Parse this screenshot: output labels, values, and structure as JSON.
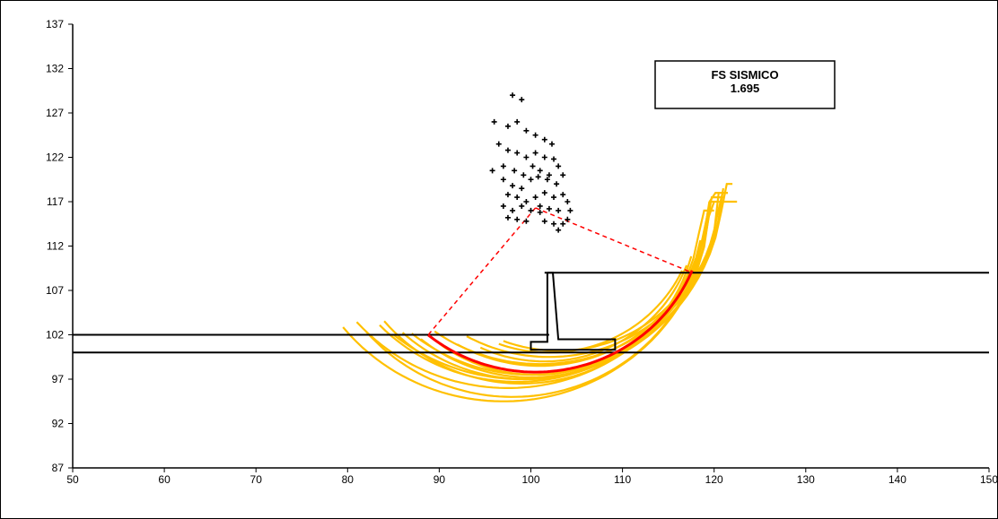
{
  "chart_data": {
    "type": "scatter",
    "title": "",
    "xlabel": "",
    "ylabel": "",
    "xlim": [
      50,
      150
    ],
    "ylim": [
      87,
      137
    ],
    "x_ticks": [
      50,
      60,
      70,
      80,
      90,
      100,
      110,
      120,
      130,
      140,
      150
    ],
    "y_ticks": [
      87,
      92,
      97,
      102,
      107,
      112,
      117,
      122,
      127,
      132,
      137
    ],
    "grid": false,
    "annotation": {
      "line1": "FS SISMICO",
      "line2": "1.695"
    },
    "colors": {
      "critical": "#ff0000",
      "trial": "#ffc000",
      "profile": "#000000",
      "centers": "#000000",
      "radius": "#ff0000"
    },
    "profile": {
      "lower_ground": [
        [
          50,
          100
        ],
        [
          150,
          100
        ]
      ],
      "upper_ground": [
        [
          50,
          102
        ],
        [
          102,
          102
        ]
      ],
      "backfill": [
        [
          101.5,
          109
        ],
        [
          150,
          109
        ]
      ],
      "wall": [
        [
          101.8,
          109
        ],
        [
          102.4,
          109
        ],
        [
          103,
          101.5
        ],
        [
          109.2,
          101.5
        ],
        [
          109.2,
          100.3
        ],
        [
          100,
          100.3
        ],
        [
          100,
          101.2
        ],
        [
          101.8,
          101.2
        ],
        [
          101.8,
          109
        ]
      ]
    },
    "centers": [
      [
        98,
        129
      ],
      [
        99,
        128.5
      ],
      [
        96,
        126
      ],
      [
        97.5,
        125.5
      ],
      [
        98.5,
        126
      ],
      [
        99.5,
        125
      ],
      [
        100.5,
        124.5
      ],
      [
        101.5,
        124
      ],
      [
        102.3,
        123.5
      ],
      [
        96.5,
        123.5
      ],
      [
        97.5,
        122.8
      ],
      [
        98.5,
        122.5
      ],
      [
        99.5,
        122
      ],
      [
        100.5,
        122.5
      ],
      [
        101.5,
        122
      ],
      [
        102.5,
        121.8
      ],
      [
        97,
        121
      ],
      [
        98.2,
        120.5
      ],
      [
        99.2,
        120
      ],
      [
        100.2,
        121
      ],
      [
        101,
        120.5
      ],
      [
        102,
        120
      ],
      [
        103,
        121
      ],
      [
        103.5,
        120
      ],
      [
        95.8,
        120.5
      ],
      [
        97,
        119.5
      ],
      [
        98,
        118.8
      ],
      [
        99,
        118.5
      ],
      [
        100,
        119.5
      ],
      [
        100.8,
        119.8
      ],
      [
        101.8,
        119.5
      ],
      [
        102.8,
        119
      ],
      [
        97.5,
        117.8
      ],
      [
        98.5,
        117.5
      ],
      [
        99.5,
        117
      ],
      [
        100.5,
        117.5
      ],
      [
        101.5,
        118
      ],
      [
        102.5,
        117.5
      ],
      [
        103.5,
        117.8
      ],
      [
        97,
        116.5
      ],
      [
        98,
        116
      ],
      [
        99,
        116.5
      ],
      [
        100,
        116
      ],
      [
        101,
        115.8
      ],
      [
        102,
        116.2
      ],
      [
        103,
        116
      ],
      [
        104,
        117
      ],
      [
        104.3,
        116
      ],
      [
        97.5,
        115.2
      ],
      [
        98.5,
        115
      ],
      [
        99.5,
        114.8
      ],
      [
        101.5,
        114.8
      ],
      [
        102.5,
        114.5
      ],
      [
        103.5,
        114.5
      ],
      [
        104,
        115
      ],
      [
        101,
        116.5
      ],
      [
        103,
        113.8
      ]
    ],
    "critical_circle": {
      "center": [
        100.5,
        116.3
      ],
      "radius": 18.5,
      "entry": [
        88.8,
        102
      ],
      "exit": [
        117.6,
        109
      ]
    },
    "trial_circles": [
      {
        "center": [
          97,
          117
        ],
        "radius": 22.5,
        "x1": 79.5,
        "x2": 122.5
      },
      {
        "center": [
          98,
          116
        ],
        "radius": 21.0,
        "x1": 82.0,
        "x2": 120.0
      },
      {
        "center": [
          99,
          116
        ],
        "radius": 19.5,
        "x1": 84.0,
        "x2": 119.5
      },
      {
        "center": [
          99.5,
          117
        ],
        "radius": 20.0,
        "x1": 86.0,
        "x2": 120.0
      },
      {
        "center": [
          100,
          116
        ],
        "radius": 18.8,
        "x1": 88.0,
        "x2": 118.5
      },
      {
        "center": [
          100.5,
          115
        ],
        "radius": 17.5,
        "x1": 90.0,
        "x2": 117.5
      },
      {
        "center": [
          101,
          116.5
        ],
        "radius": 18.0,
        "x1": 92.0,
        "x2": 118.0
      },
      {
        "center": [
          101.5,
          115.5
        ],
        "radius": 16.5,
        "x1": 94.5,
        "x2": 117.0
      },
      {
        "center": [
          102,
          116
        ],
        "radius": 16.0,
        "x1": 96.5,
        "x2": 116.5
      },
      {
        "center": [
          97.5,
          118
        ],
        "radius": 22.0,
        "x1": 81.0,
        "x2": 121.5
      },
      {
        "center": [
          98.5,
          117.5
        ],
        "radius": 20.8,
        "x1": 83.5,
        "x2": 121.0
      },
      {
        "center": [
          100,
          118
        ],
        "radius": 20.5,
        "x1": 87.0,
        "x2": 121.5
      },
      {
        "center": [
          101,
          118.5
        ],
        "radius": 19.8,
        "x1": 89.5,
        "x2": 121.0
      },
      {
        "center": [
          102,
          118
        ],
        "radius": 18.5,
        "x1": 93.0,
        "x2": 120.5
      },
      {
        "center": [
          99,
          119
        ],
        "radius": 22.0,
        "x1": 85.0,
        "x2": 122.0
      },
      {
        "center": [
          103,
          117
        ],
        "radius": 16.8,
        "x1": 97.0,
        "x2": 118.5
      }
    ]
  }
}
